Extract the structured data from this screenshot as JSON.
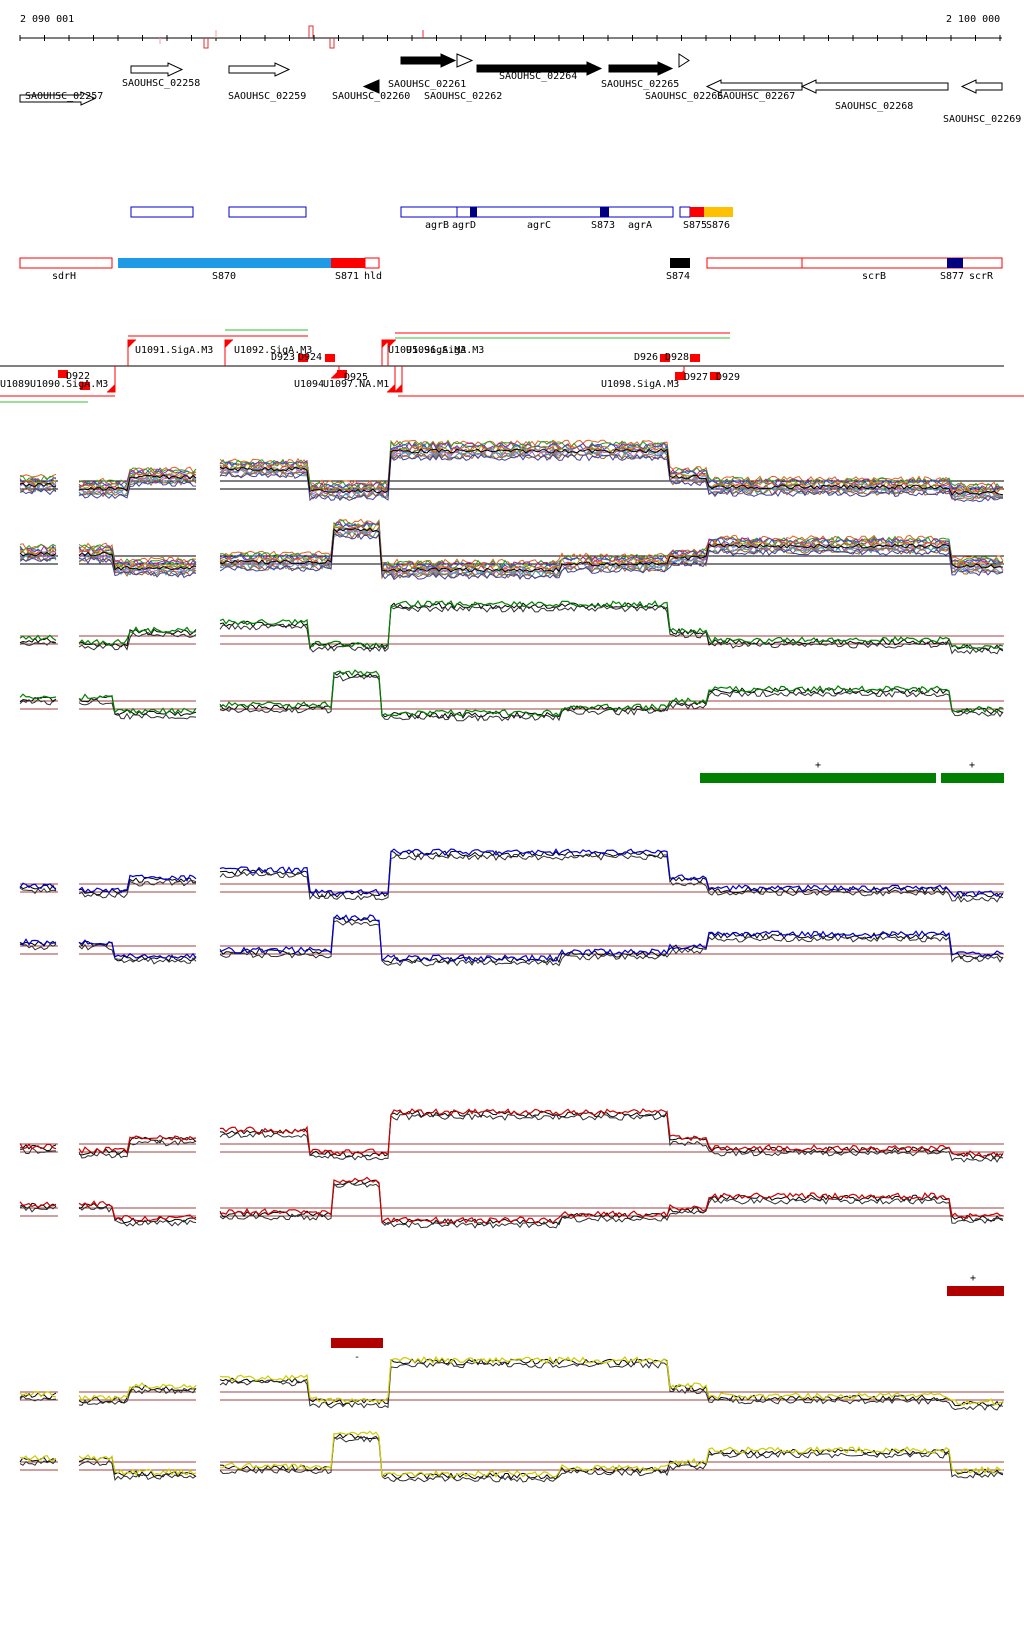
{
  "coordinates": {
    "start_label": "2 090 001",
    "end_label": "2 100 000"
  },
  "genes": [
    {
      "name": "SAOUHSC_02257",
      "strand": "+",
      "fill": "#ffffff",
      "row": "lower"
    },
    {
      "name": "SAOUHSC_02258",
      "strand": "+",
      "fill": "#ffffff",
      "row": "upper"
    },
    {
      "name": "SAOUHSC_02259",
      "strand": "+",
      "fill": "#ffffff",
      "row": "upper"
    },
    {
      "name": "SAOUHSC_02260",
      "strand": "-",
      "fill": "#000000",
      "row": "lower"
    },
    {
      "name": "SAOUHSC_02261",
      "strand": "+",
      "fill": "#000000",
      "row": "upper"
    },
    {
      "name": "SAOUHSC_02262",
      "strand": "+",
      "fill": "#ffffff",
      "row": "upper"
    },
    {
      "name": "SAOUHSC_02264",
      "strand": "+",
      "fill": "#000000",
      "row": "upper"
    },
    {
      "name": "SAOUHSC_02265",
      "strand": "+",
      "fill": "#000000",
      "row": "upper"
    },
    {
      "name": "SAOUHSC_02266",
      "strand": "+",
      "fill": "#ffffff",
      "row": "upper"
    },
    {
      "name": "SAOUHSC_02267",
      "strand": "-",
      "fill": "#ffffff",
      "row": "lower"
    },
    {
      "name": "SAOUHSC_02268",
      "strand": "-",
      "fill": "#ffffff",
      "row": "lower"
    },
    {
      "name": "SAOUHSC_02269",
      "strand": "-",
      "fill": "#ffffff",
      "row": "lower"
    }
  ],
  "annotations_plus": [
    {
      "label": "agrB",
      "color": "#0000cc"
    },
    {
      "label": "agrD",
      "color": "#0000cc"
    },
    {
      "label": "agrC",
      "color": "#0000cc"
    },
    {
      "label": "S873",
      "color": "#0000cc"
    },
    {
      "label": "agrA",
      "color": "#0000cc"
    },
    {
      "label": "S875",
      "color": "#ff0000"
    },
    {
      "label": "S876",
      "color": "#ffc000"
    }
  ],
  "annotations_minus": [
    {
      "label": "sdrH",
      "color": "#ff0000"
    },
    {
      "label": "S870",
      "color": "#1e9ae6"
    },
    {
      "label": "S871",
      "color": "#ff0000"
    },
    {
      "label": "hld",
      "color": "#ff0000"
    },
    {
      "label": "S874",
      "color": "#000000"
    },
    {
      "label": "scrB",
      "color": "#ff0000"
    },
    {
      "label": "S877",
      "color": "#000080"
    },
    {
      "label": "scrR",
      "color": "#ff0000"
    }
  ],
  "promoters_plus": [
    "U1091.SigA.M3",
    "U1092.SigA.M3",
    "D923",
    "D924",
    "D926",
    "D928"
  ],
  "promoters_mixed": [
    "U1095.SigA.M3",
    "U1096.SigA.M3",
    "D925"
  ],
  "promoters_minus": [
    "U1089",
    "U1090.SigA.M3",
    "D922",
    "U1094",
    "U1097.NA.M1",
    "U1098.SigA.M3",
    "D927",
    "D929"
  ],
  "panels": [
    {
      "id": "all",
      "color": "#888888",
      "strand_label": ""
    },
    {
      "id": "green",
      "color": "#008000",
      "bar_labels": [
        "+",
        "+"
      ]
    },
    {
      "id": "blue",
      "color": "#0000cc",
      "bar_labels": []
    },
    {
      "id": "red",
      "color": "#cc0000",
      "bar_labels": [
        "+",
        "-"
      ]
    },
    {
      "id": "yellow",
      "color": "#cccc00",
      "bar_labels": []
    }
  ],
  "colors": {
    "baseline": "#a04040",
    "sample_black": "#000000",
    "green": "#008000",
    "blue": "#0000cc",
    "red": "#cc0000",
    "yellow": "#cccc00",
    "dark_red_bar": "#b00000"
  }
}
